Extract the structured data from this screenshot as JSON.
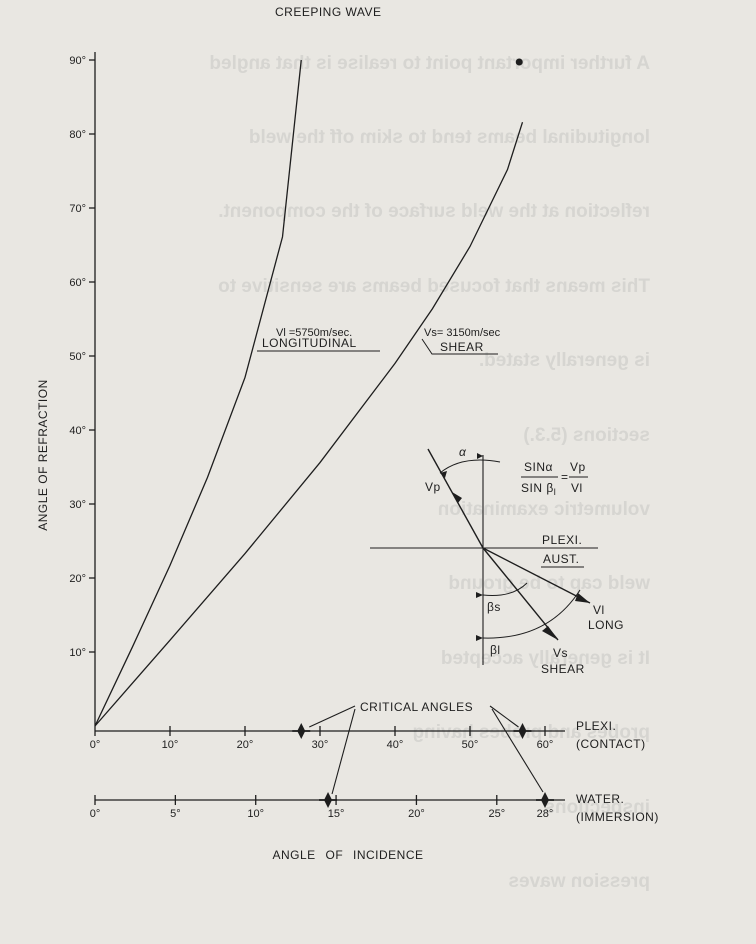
{
  "show_through_text": [
    "A further important point to realise is that angled",
    "longitudinal beams tend to skim off the weld",
    "reflection at the weld surface of the component.",
    "This means that focused beams are sensitive to",
    "is generally stated.",
    "sections (5.3.)",
    "volumetric examination",
    "weld cap to be ground",
    "It is generally accepted",
    "probes and probes having",
    "inspections",
    "pression waves"
  ],
  "curve_labels": {
    "creeping": "CREEPING WAVE",
    "longitudinal_speed": "Vl =5750m/sec.",
    "longitudinal_name": "LONGITUDINAL",
    "shear_speed": "Vs= 3150m/sec",
    "shear_name": "SHEAR"
  },
  "inset": {
    "alpha": "α",
    "vp": "Vp",
    "formula_num_left": "SINα",
    "formula_den_left": "SIN β",
    "formula_den_left_sub": "l",
    "formula_equals": "=",
    "formula_num_right": "Vp",
    "formula_den_right": "Vl",
    "medium_top": "PLEXI.",
    "medium_bottom": "AUST.",
    "beta_s": "βs",
    "beta_l": "βl",
    "vl": "Vl",
    "long": "LONG",
    "vs": "Vs",
    "shear": "SHEAR"
  },
  "critical_angles_label": "CRITICAL  ANGLES",
  "plexi_axis": {
    "name": "PLEXI.",
    "note": "(CONTACT)"
  },
  "water_axis": {
    "name": "WATER.",
    "note": "(IMMERSION)"
  },
  "chart_data": {
    "type": "line",
    "ylabel": "ANGLE OF REFRACTION",
    "xlabel": "ANGLE OF INCIDENCE",
    "ylim": [
      0,
      90
    ],
    "yticks": [
      "10°",
      "20°",
      "30°",
      "40°",
      "50°",
      "60°",
      "70°",
      "80°",
      "90°"
    ],
    "x_axes": [
      {
        "name": "PLEXI. (CONTACT)",
        "xlim": [
          0,
          60
        ],
        "ticks": [
          "0°",
          "10°",
          "20°",
          "30°",
          "40°",
          "50°",
          "60°"
        ],
        "critical_angles": [
          27.5,
          57
        ]
      },
      {
        "name": "WATER. (IMMERSION)",
        "xlim": [
          0,
          28
        ],
        "ticks": [
          "0°",
          "5°",
          "10°",
          "15°",
          "20°",
          "25°",
          "28°"
        ],
        "critical_angles": [
          14.5,
          28
        ]
      }
    ],
    "series": [
      {
        "name": "LONGITUDINAL",
        "x": [
          0,
          5,
          10,
          15,
          20,
          25,
          27.5
        ],
        "y": [
          0,
          10.7,
          21.7,
          33.6,
          47.1,
          66.1,
          90
        ]
      },
      {
        "name": "SHEAR",
        "x": [
          0,
          10,
          20,
          30,
          40,
          45,
          50,
          55,
          57
        ],
        "y": [
          0,
          11.6,
          23.3,
          35.6,
          49.0,
          56.4,
          64.8,
          75.2,
          81.6
        ]
      }
    ]
  }
}
